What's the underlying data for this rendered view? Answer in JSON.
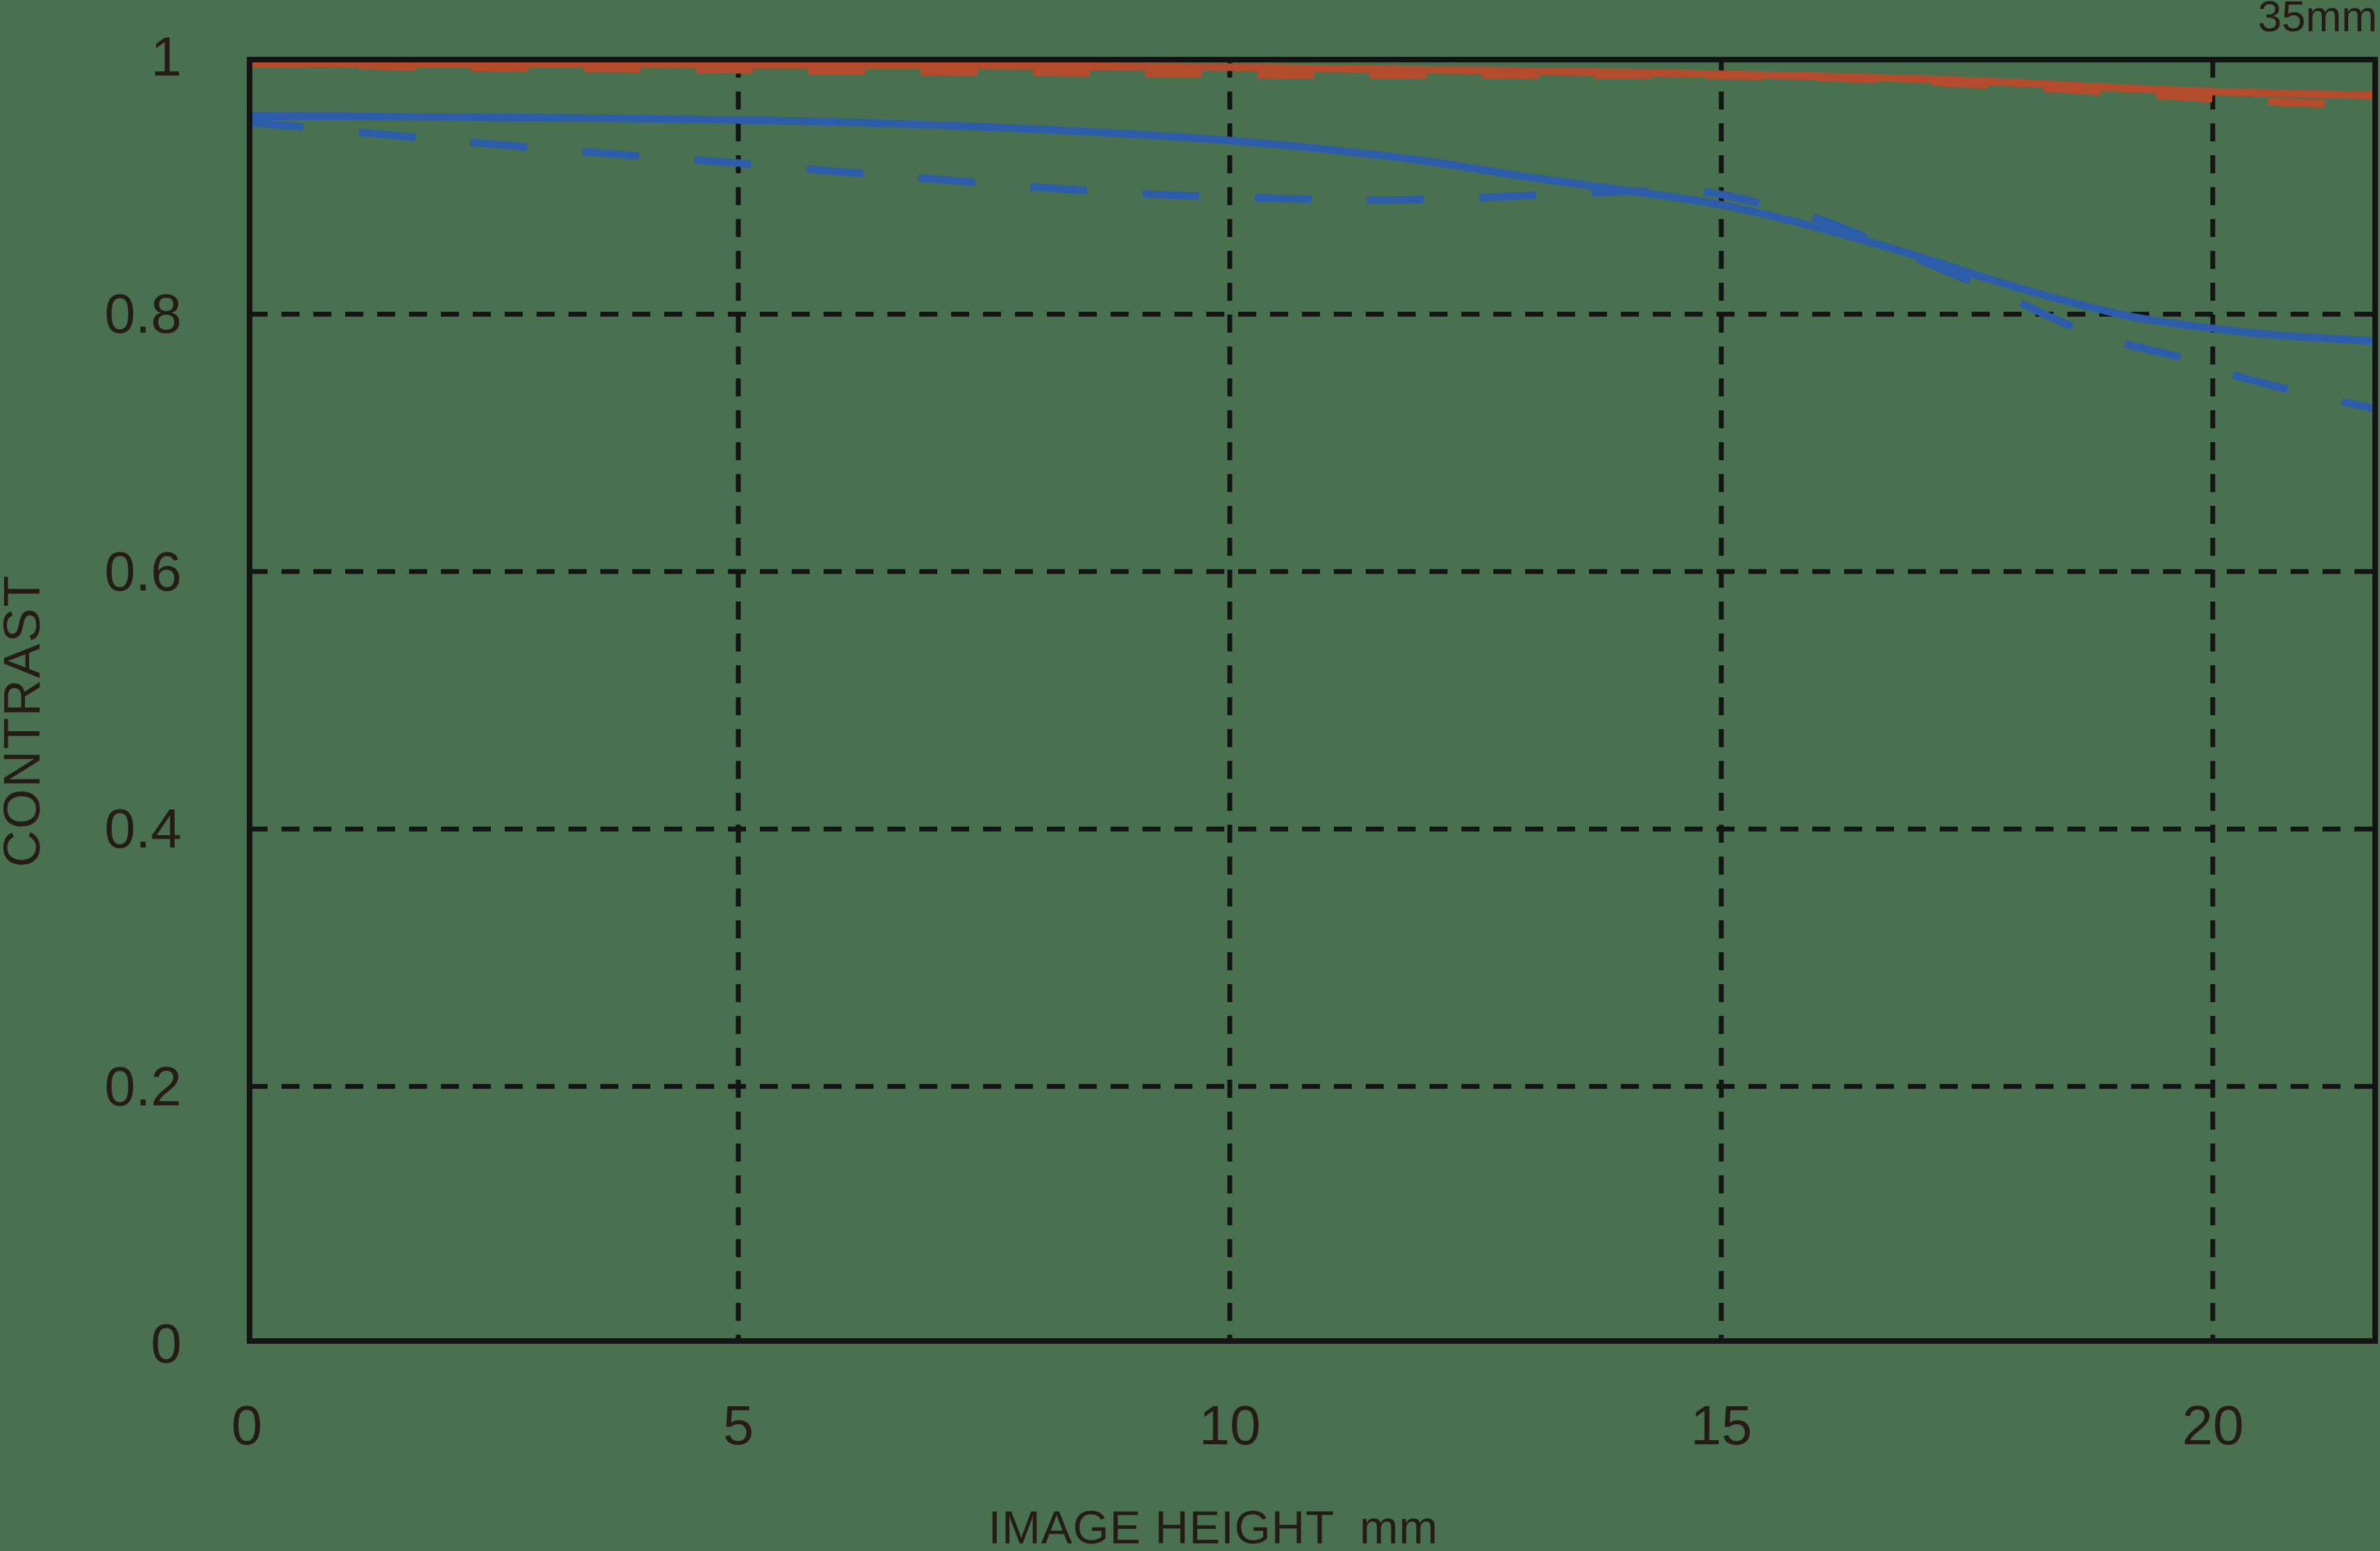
{
  "corner_label": "35mm",
  "axes": {
    "x": {
      "title": "IMAGE HEIGHT",
      "unit": "mm",
      "ticks": [
        "0",
        "5",
        "10",
        "15",
        "20"
      ]
    },
    "y": {
      "title": "CONTRAST",
      "ticks": [
        "1",
        "0.8",
        "0.6",
        "0.4",
        "0.2",
        "0"
      ]
    }
  },
  "colors": {
    "background": "#497150",
    "axis_line": "#141414",
    "text": "#261c16",
    "red_curve": "#b44b2d",
    "blue_curve": "#2d5caa"
  },
  "chart_data": {
    "type": "line",
    "title": "35mm",
    "xlabel": "IMAGE HEIGHT mm",
    "ylabel": "CONTRAST",
    "xlim": [
      0,
      21.68
    ],
    "ylim": [
      0,
      1
    ],
    "x_ticks": [
      0,
      5,
      10,
      15,
      20
    ],
    "y_ticks": [
      0,
      0.2,
      0.4,
      0.6,
      0.8,
      1
    ],
    "x_gridlines": [
      5,
      10,
      15,
      20
    ],
    "y_gridlines": [
      0.2,
      0.4,
      0.6,
      0.8
    ],
    "grid": "dashed",
    "legend": "none",
    "series": [
      {
        "name": "red-solid",
        "color": "#b44b2d",
        "dash": "solid",
        "x": [
          0,
          2,
          5,
          8,
          10,
          12,
          14,
          15,
          16,
          17,
          18,
          19,
          20,
          20.8,
          21.68
        ],
        "y": [
          0.995,
          0.9948,
          0.994,
          0.993,
          0.992,
          0.99,
          0.988,
          0.9865,
          0.985,
          0.983,
          0.98,
          0.976,
          0.973,
          0.9715,
          0.97
        ]
      },
      {
        "name": "red-dashed",
        "color": "#b44b2d",
        "dash": "dashed",
        "x": [
          0,
          1,
          2,
          3.5,
          5,
          7,
          8,
          10,
          12,
          14,
          15,
          16,
          17,
          18,
          19,
          20,
          20.8,
          21.68
        ],
        "y": [
          0.995,
          0.9935,
          0.992,
          0.991,
          0.99,
          0.9885,
          0.988,
          0.9865,
          0.986,
          0.986,
          0.9855,
          0.984,
          0.981,
          0.977,
          0.9725,
          0.9675,
          0.9645,
          0.962
        ]
      },
      {
        "name": "blue-solid",
        "color": "#2d5caa",
        "dash": "solid",
        "x": [
          0,
          1,
          2,
          3,
          4,
          5,
          6,
          7,
          8,
          9,
          10,
          11,
          12,
          13,
          14,
          15,
          16,
          17,
          18,
          19,
          19.5,
          20,
          20.7,
          21.68
        ],
        "y": [
          0.954,
          0.9538,
          0.9533,
          0.9528,
          0.952,
          0.951,
          0.9495,
          0.947,
          0.944,
          0.94,
          0.935,
          0.928,
          0.919,
          0.907,
          0.8965,
          0.885,
          0.867,
          0.845,
          0.821,
          0.801,
          0.794,
          0.789,
          0.7835,
          0.779
        ]
      },
      {
        "name": "blue-dashed",
        "color": "#2d5caa",
        "dash": "dashed",
        "x": [
          0,
          0.5,
          1,
          2,
          3,
          4,
          5,
          6,
          7,
          8,
          9,
          10,
          11,
          11.7,
          12.5,
          13.3,
          14,
          14.6,
          15,
          15.9,
          16.4,
          16.9,
          17.4,
          17.9,
          18.4,
          18.9,
          19.7,
          20.2,
          20.8,
          21.68
        ],
        "y": [
          0.949,
          0.946,
          0.9425,
          0.9355,
          0.929,
          0.923,
          0.9175,
          0.911,
          0.905,
          0.899,
          0.894,
          0.891,
          0.8892,
          0.8888,
          0.8905,
          0.8932,
          0.8952,
          0.8955,
          0.893,
          0.876,
          0.862,
          0.846,
          0.83,
          0.814,
          0.796,
          0.781,
          0.766,
          0.753,
          0.741,
          0.726
        ]
      }
    ]
  }
}
